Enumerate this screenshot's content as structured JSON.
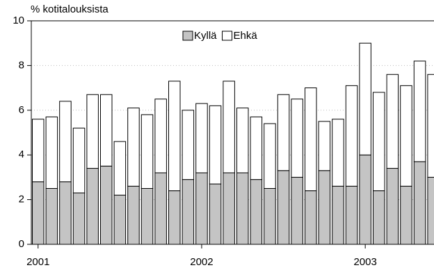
{
  "chart_data": {
    "type": "stacked_bar",
    "title": "% kotitalouksista",
    "categories": [
      "2001",
      null,
      null,
      null,
      null,
      null,
      null,
      null,
      null,
      null,
      null,
      null,
      "2002",
      null,
      null,
      null,
      null,
      null,
      null,
      null,
      null,
      null,
      null,
      null,
      "2003",
      null,
      null,
      null,
      null,
      null
    ],
    "series": [
      {
        "name": "Kyllä",
        "color": "#c4c4c4",
        "values": [
          2.8,
          2.5,
          2.8,
          2.3,
          3.4,
          3.5,
          2.2,
          2.6,
          2.5,
          3.2,
          2.4,
          2.9,
          3.2,
          2.7,
          3.2,
          3.2,
          2.9,
          2.5,
          3.3,
          3.0,
          2.4,
          3.3,
          2.6,
          2.6,
          4.0,
          2.4,
          3.4,
          2.6,
          3.7,
          3.0
        ]
      },
      {
        "name": "Ehkä",
        "color": "#ffffff",
        "values": [
          2.8,
          3.2,
          3.6,
          2.9,
          3.3,
          3.2,
          2.4,
          3.5,
          3.3,
          3.3,
          4.9,
          3.1,
          3.1,
          3.5,
          4.1,
          2.9,
          2.8,
          2.9,
          3.4,
          3.5,
          4.6,
          2.2,
          3.0,
          4.5,
          5.0,
          4.4,
          4.2,
          4.5,
          4.5,
          4.6
        ]
      }
    ],
    "ylim": [
      0,
      10
    ],
    "yticks": [
      0,
      2,
      4,
      6,
      8,
      10
    ],
    "grid": true
  }
}
